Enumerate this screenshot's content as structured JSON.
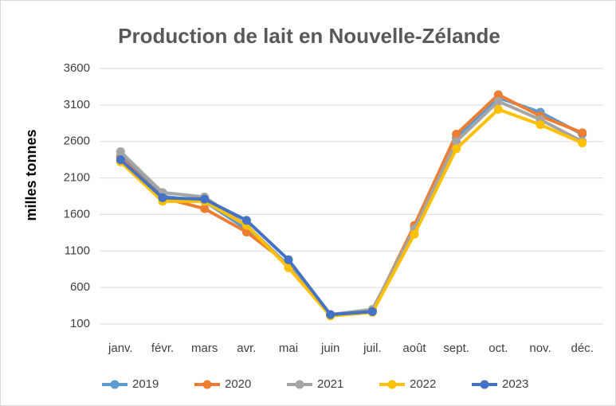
{
  "chart_data": {
    "type": "line",
    "title": "Production de lait en Nouvelle-Zélande",
    "y_label": "milles tonnes",
    "categories": [
      "janv.",
      "févr.",
      "mars",
      "avr.",
      "mai",
      "juin",
      "juil.",
      "août",
      "sept.",
      "oct.",
      "nov.",
      "déc."
    ],
    "series": [
      {
        "name": "2019",
        "color": "#5b9bd5",
        "values": [
          2400,
          1850,
          1780,
          1400,
          900,
          220,
          270,
          1430,
          2650,
          3200,
          3000,
          2700
        ]
      },
      {
        "name": "2020",
        "color": "#ed7d31",
        "values": [
          2380,
          1830,
          1680,
          1360,
          920,
          230,
          280,
          1450,
          2700,
          3240,
          2950,
          2720
        ]
      },
      {
        "name": "2021",
        "color": "#a5a5a5",
        "values": [
          2460,
          1900,
          1840,
          1450,
          900,
          230,
          300,
          1400,
          2600,
          3150,
          2900,
          2600
        ]
      },
      {
        "name": "2022",
        "color": "#ffc000",
        "values": [
          2320,
          1780,
          1780,
          1450,
          870,
          210,
          260,
          1330,
          2500,
          3040,
          2830,
          2580
        ]
      },
      {
        "name": "2023",
        "color": "#4472c4",
        "values": [
          2350,
          1830,
          1810,
          1520,
          980,
          230,
          270,
          null,
          null,
          null,
          null,
          null
        ]
      }
    ],
    "ylim": [
      100,
      3600
    ],
    "yticks": [
      100,
      600,
      1100,
      1600,
      2100,
      2600,
      3100,
      3600
    ],
    "grid": true,
    "legend": "bottom"
  }
}
